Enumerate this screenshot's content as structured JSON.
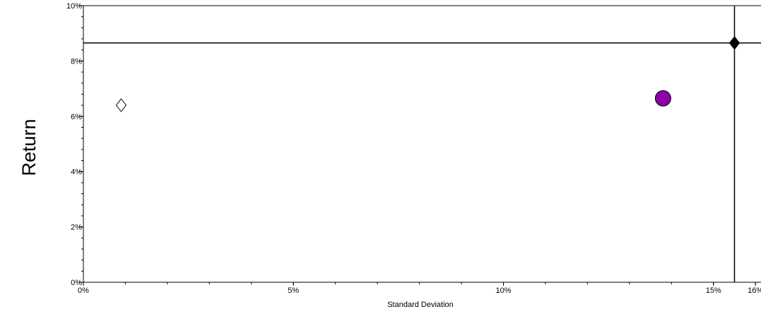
{
  "chart_data": {
    "type": "scatter",
    "title": "",
    "xlabel": "Standard Deviation",
    "ylabel": "Return",
    "xlim": [
      0,
      16
    ],
    "ylim": [
      0,
      10
    ],
    "x_ticks": [
      {
        "value": 0,
        "label": "0%"
      },
      {
        "value": 5,
        "label": "5%"
      },
      {
        "value": 10,
        "label": "10%"
      },
      {
        "value": 15,
        "label": "15%"
      },
      {
        "value": 16,
        "label": "16%"
      }
    ],
    "y_ticks": [
      {
        "value": 0,
        "label": "0%"
      },
      {
        "value": 2,
        "label": "2%"
      },
      {
        "value": 4,
        "label": "4%"
      },
      {
        "value": 6,
        "label": "6%"
      },
      {
        "value": 8,
        "label": "8%"
      },
      {
        "value": 10,
        "label": "10%"
      }
    ],
    "x_minor_step": 1,
    "y_minor_step": 0.4,
    "points": [
      {
        "x": 0.9,
        "y": 6.4,
        "marker": "diamond-open",
        "color": "#ffffff",
        "stroke": "#000000"
      },
      {
        "x": 13.8,
        "y": 6.65,
        "marker": "circle",
        "color": "#8b00a8",
        "stroke": "#000000"
      },
      {
        "x": 15.5,
        "y": 8.65,
        "marker": "diamond-filled",
        "color": "#000000",
        "stroke": "#000000"
      }
    ],
    "reference_lines": {
      "horizontal_y": 8.65,
      "vertical_x": 15.5
    },
    "grid": false,
    "legend": "none"
  }
}
